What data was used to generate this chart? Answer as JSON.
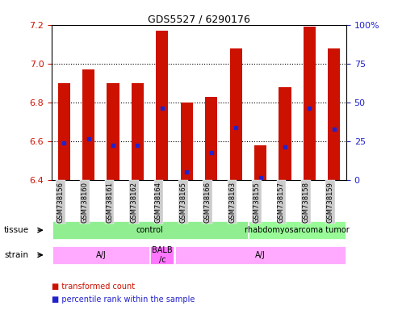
{
  "title": "GDS5527 / 6290176",
  "samples": [
    "GSM738156",
    "GSM738160",
    "GSM738161",
    "GSM738162",
    "GSM738164",
    "GSM738165",
    "GSM738166",
    "GSM738163",
    "GSM738155",
    "GSM738157",
    "GSM738158",
    "GSM738159"
  ],
  "bar_bottom": 6.4,
  "bar_tops": [
    6.9,
    6.97,
    6.9,
    6.9,
    7.17,
    6.8,
    6.83,
    7.08,
    6.58,
    6.88,
    7.19,
    7.08
  ],
  "blue_dot_y": [
    6.59,
    6.61,
    6.58,
    6.58,
    6.77,
    6.44,
    6.54,
    6.67,
    6.41,
    6.57,
    6.77,
    6.66
  ],
  "ylim": [
    6.4,
    7.2
  ],
  "yticks": [
    6.4,
    6.6,
    6.8,
    7.0,
    7.2
  ],
  "right_yticks": [
    0,
    25,
    50,
    75,
    100
  ],
  "bar_color": "#cc1100",
  "dot_color": "#2222cc",
  "tissue_groups": [
    {
      "label": "control",
      "start": 0,
      "end": 8,
      "color": "#90ee90"
    },
    {
      "label": "rhabdomyosarcoma tumor",
      "start": 8,
      "end": 12,
      "color": "#98fb98"
    }
  ],
  "strain_groups": [
    {
      "label": "A/J",
      "start": 0,
      "end": 4,
      "color": "#ffaaff"
    },
    {
      "label": "BALB\n/c",
      "start": 4,
      "end": 5,
      "color": "#ff77ff"
    },
    {
      "label": "A/J",
      "start": 5,
      "end": 12,
      "color": "#ffaaff"
    }
  ],
  "background_color": "#ffffff",
  "tick_label_bg": "#cccccc"
}
